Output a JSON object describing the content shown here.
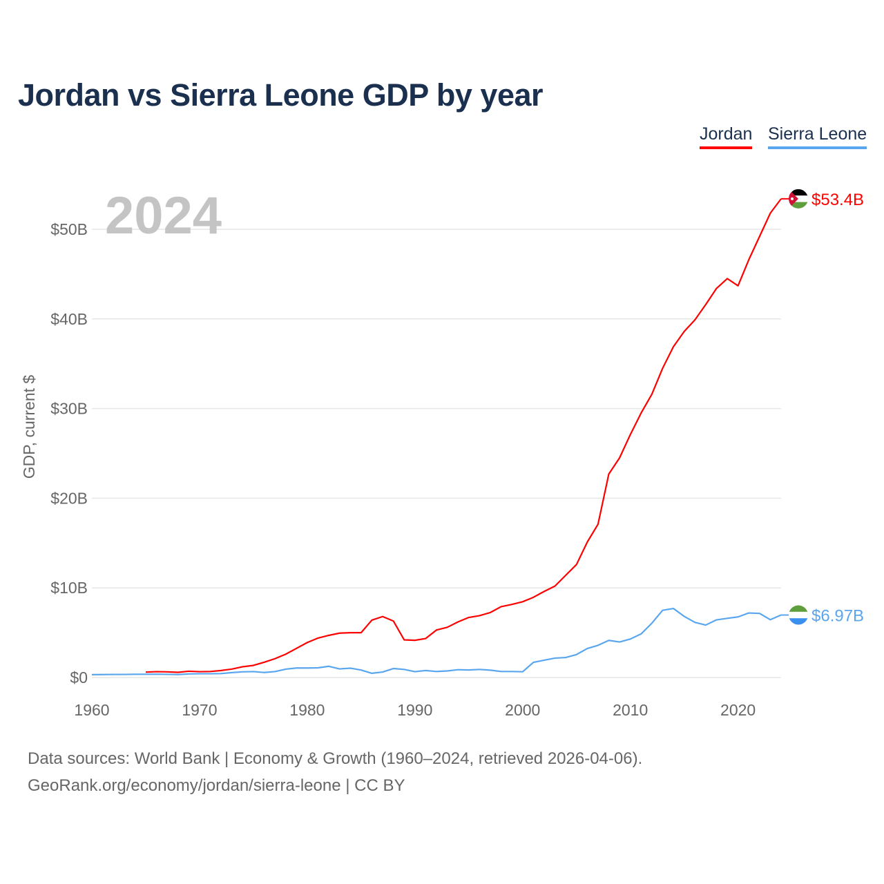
{
  "title": "Jordan vs Sierra Leone GDP by year",
  "year_label": "2024",
  "legend": [
    {
      "name": "Jordan",
      "color": "#ff0000"
    },
    {
      "name": "Sierra Leone",
      "color": "#5aa6ee"
    }
  ],
  "footer": {
    "line1": "Data sources: World Bank | Economy & Growth (1960–2024, retrieved 2026-04-06).",
    "line2": "GeoRank.org/economy/jordan/sierra-leone | CC BY"
  },
  "chart_data": {
    "type": "line",
    "title": "Jordan vs Sierra Leone GDP by year",
    "ylabel": "GDP, current $",
    "xlabel": "",
    "xlim": [
      1960,
      2024
    ],
    "ylim": [
      0,
      55
    ],
    "x_ticks": [
      1960,
      1970,
      1980,
      1990,
      2000,
      2010,
      2020
    ],
    "x_tick_labels": [
      "1960",
      "1970",
      "1980",
      "1990",
      "2000",
      "2010",
      "2020"
    ],
    "y_ticks": [
      0,
      10,
      20,
      30,
      40,
      50
    ],
    "y_tick_labels": [
      "$0",
      "$10B",
      "$20B",
      "$30B",
      "$40B",
      "$50B"
    ],
    "grid": true,
    "legend_position": "top-right",
    "series": [
      {
        "name": "Jordan",
        "color": "#ff0000",
        "start_year": 1965,
        "end_label": "$53.4B",
        "flag": "jordan-flag",
        "values": [
          0.6,
          0.65,
          0.63,
          0.58,
          0.7,
          0.65,
          0.67,
          0.78,
          0.94,
          1.2,
          1.35,
          1.7,
          2.1,
          2.6,
          3.25,
          3.9,
          4.4,
          4.7,
          4.95,
          5.0,
          5.0,
          6.4,
          6.8,
          6.3,
          4.2,
          4.15,
          4.35,
          5.3,
          5.6,
          6.2,
          6.7,
          6.9,
          7.25,
          7.9,
          8.15,
          8.45,
          8.95,
          9.6,
          10.2,
          11.4,
          12.6,
          15.1,
          17.1,
          22.7,
          24.5,
          27.1,
          29.5,
          31.6,
          34.5,
          36.9,
          38.6,
          39.9,
          41.6,
          43.4,
          44.5,
          43.7,
          46.6,
          49.2,
          51.8,
          53.4
        ]
      },
      {
        "name": "Sierra Leone",
        "color": "#5aa6ee",
        "start_year": 1960,
        "end_label": "$6.97B",
        "flag": "sierra-leone-flag",
        "values": [
          0.32,
          0.33,
          0.34,
          0.34,
          0.36,
          0.36,
          0.37,
          0.35,
          0.33,
          0.4,
          0.42,
          0.42,
          0.44,
          0.55,
          0.63,
          0.66,
          0.56,
          0.66,
          0.93,
          1.06,
          1.06,
          1.08,
          1.25,
          0.96,
          1.04,
          0.83,
          0.47,
          0.61,
          1.0,
          0.9,
          0.65,
          0.78,
          0.67,
          0.73,
          0.87,
          0.84,
          0.9,
          0.82,
          0.67,
          0.67,
          0.64,
          1.69,
          1.93,
          2.16,
          2.23,
          2.56,
          3.23,
          3.59,
          4.14,
          3.96,
          4.29,
          4.86,
          6.06,
          7.5,
          7.7,
          6.82,
          6.15,
          5.85,
          6.43,
          6.6,
          6.76,
          7.2,
          7.15,
          6.45,
          6.97
        ]
      }
    ]
  }
}
